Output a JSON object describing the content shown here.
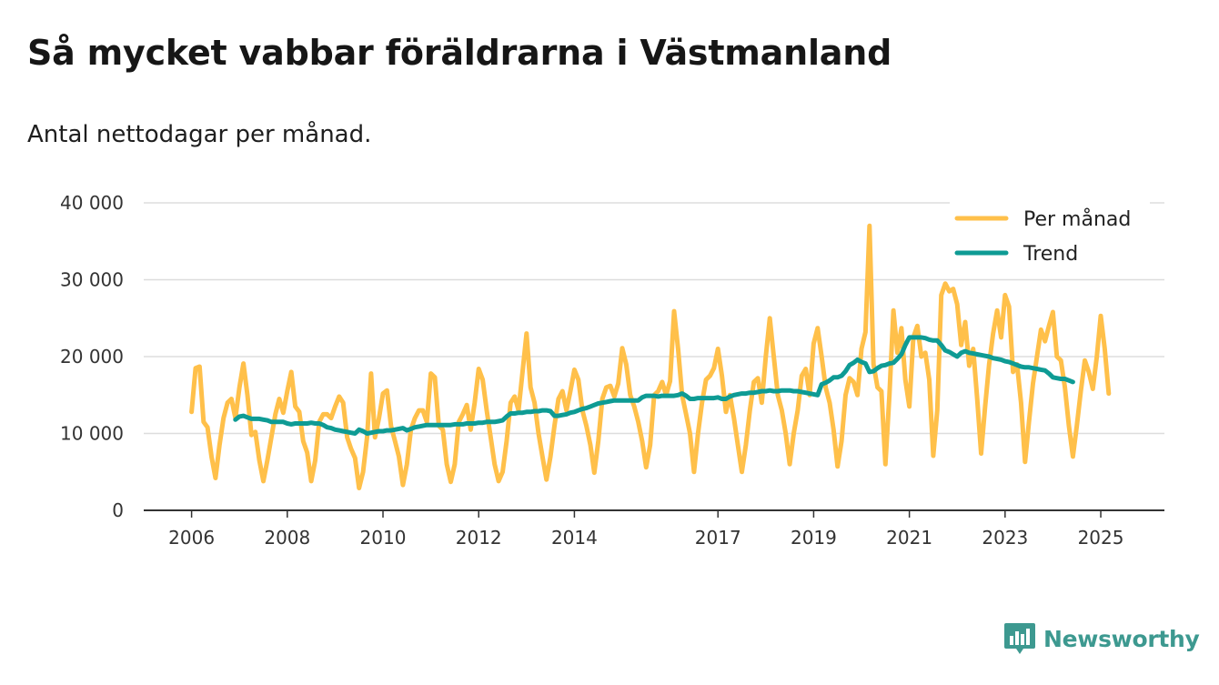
{
  "title": "Så mycket vabbar föräldrarna i Västmanland",
  "subtitle": "Antal nettodagar per månad.",
  "brand": {
    "name": "Newsworthy",
    "color": "#3d9990",
    "icon": "bar-chart-badge-icon"
  },
  "colors": {
    "per_month": "#ffc04a",
    "trend": "#0e9b94",
    "grid": "#dddddd",
    "axis": "#333333"
  },
  "chart_data": {
    "type": "line",
    "title": "Så mycket vabbar föräldrarna i Västmanland",
    "subtitle": "Antal nettodagar per månad.",
    "xlabel": "",
    "ylabel": "",
    "xlim": [
      2005.0,
      2026.33
    ],
    "ylim": [
      0,
      40000
    ],
    "yticks": [
      0,
      10000,
      20000,
      30000,
      40000
    ],
    "ytick_labels": [
      "0",
      "10 000",
      "20 000",
      "30 000",
      "40 000"
    ],
    "xticks": [
      2006,
      2008,
      2010,
      2012,
      2014,
      2017,
      2019,
      2021,
      2023,
      2025
    ],
    "xtick_labels": [
      "2006",
      "2008",
      "2010",
      "2012",
      "2014",
      "2017",
      "2019",
      "2021",
      "2023",
      "2025"
    ],
    "grid": true,
    "legend_position": "top-right",
    "series": [
      {
        "name": "Per månad",
        "start": 2006.0,
        "step": 0.08333333,
        "values": [
          12800,
          18500,
          18700,
          11500,
          10800,
          7000,
          4200,
          8500,
          12000,
          14000,
          14500,
          12000,
          16000,
          19100,
          15000,
          9800,
          10200,
          6500,
          3800,
          6500,
          9500,
          12500,
          14500,
          12700,
          15500,
          18000,
          13500,
          12800,
          9000,
          7500,
          3800,
          6500,
          11500,
          12500,
          12500,
          12000,
          13500,
          14800,
          14000,
          9500,
          8000,
          6800,
          2900,
          5000,
          9500,
          17800,
          9500,
          12000,
          15200,
          15600,
          11000,
          9000,
          7000,
          3300,
          6000,
          10500,
          12000,
          13000,
          13000,
          11500,
          17800,
          17300,
          11000,
          10500,
          6000,
          3700,
          6000,
          11500,
          12500,
          13700,
          10500,
          14000,
          18400,
          17000,
          13000,
          9500,
          6000,
          3800,
          5000,
          9000,
          14000,
          14800,
          13000,
          18000,
          23000,
          16000,
          14000,
          10000,
          7000,
          4000,
          7000,
          11000,
          14500,
          15500,
          13000,
          15500,
          18300,
          17000,
          13000,
          11000,
          8500,
          4900,
          9000,
          14500,
          16000,
          16200,
          14800,
          16500,
          21100,
          19000,
          15000,
          13500,
          11500,
          9000,
          5600,
          8500,
          15000,
          15500,
          16700,
          15000,
          16800,
          25900,
          21000,
          15000,
          12500,
          10000,
          5000,
          10000,
          14000,
          17000,
          17500,
          18500,
          21000,
          17500,
          12800,
          15000,
          12000,
          8500,
          5000,
          8500,
          13000,
          16700,
          17200,
          14000,
          20000,
          25000,
          20000,
          15000,
          13000,
          10000,
          6000,
          10000,
          13000,
          17500,
          18400,
          15000,
          21700,
          23700,
          20000,
          16000,
          14000,
          10500,
          5700,
          9000,
          15000,
          17200,
          16700,
          15000,
          21000,
          23200,
          37000,
          19000,
          16000,
          15500,
          6000,
          15000,
          26000,
          20500,
          23700,
          17000,
          13500,
          22500,
          24000,
          20000,
          20500,
          17000,
          7100,
          13000,
          28000,
          29500,
          28500,
          28800,
          26800,
          21500,
          24500,
          18800,
          21000,
          14500,
          7400,
          13500,
          19000,
          23000,
          26000,
          22500,
          28000,
          26500,
          18000,
          19000,
          14000,
          6300,
          11500,
          16500,
          20000,
          23500,
          22000,
          24000,
          25800,
          20000,
          19500,
          16000,
          11000,
          7000,
          11000,
          15500,
          19500,
          18000,
          15800,
          20000,
          25300,
          21000,
          15200
        ]
      },
      {
        "name": "Trend",
        "start": 2006.9167,
        "step": 0.08333333,
        "values": [
          11800,
          12200,
          12300,
          12100,
          11900,
          11900,
          11900,
          11800,
          11700,
          11500,
          11500,
          11500,
          11500,
          11300,
          11200,
          11300,
          11300,
          11300,
          11300,
          11400,
          11300,
          11300,
          11100,
          10800,
          10700,
          10500,
          10400,
          10300,
          10200,
          10100,
          10000,
          10500,
          10300,
          10000,
          10100,
          10200,
          10300,
          10300,
          10400,
          10400,
          10500,
          10600,
          10700,
          10400,
          10600,
          10800,
          10900,
          11000,
          11100,
          11100,
          11100,
          11100,
          11100,
          11100,
          11100,
          11200,
          11200,
          11200,
          11300,
          11300,
          11300,
          11400,
          11400,
          11500,
          11500,
          11500,
          11600,
          11700,
          12200,
          12600,
          12600,
          12700,
          12700,
          12800,
          12800,
          12900,
          12900,
          13000,
          13000,
          12900,
          12300,
          12300,
          12400,
          12500,
          12700,
          12800,
          13000,
          13200,
          13300,
          13500,
          13700,
          13900,
          14000,
          14100,
          14200,
          14300,
          14300,
          14300,
          14300,
          14300,
          14300,
          14300,
          14700,
          14900,
          14900,
          14900,
          14800,
          14900,
          14900,
          14900,
          14900,
          15000,
          15200,
          14900,
          14500,
          14500,
          14600,
          14600,
          14600,
          14600,
          14600,
          14700,
          14500,
          14500,
          14800,
          15000,
          15100,
          15200,
          15200,
          15300,
          15300,
          15400,
          15500,
          15500,
          15600,
          15500,
          15500,
          15600,
          15600,
          15600,
          15500,
          15500,
          15400,
          15300,
          15200,
          15100,
          15000,
          16400,
          16600,
          16900,
          17300,
          17300,
          17500,
          18100,
          18900,
          19200,
          19600,
          19300,
          19100,
          18000,
          18100,
          18500,
          18800,
          18900,
          19100,
          19200,
          19700,
          20300,
          21500,
          22500,
          22500,
          22500,
          22500,
          22400,
          22200,
          22100,
          22100,
          21500,
          20800,
          20600,
          20300,
          20000,
          20500,
          20700,
          20500,
          20400,
          20300,
          20200,
          20100,
          20000,
          19800,
          19700,
          19600,
          19400,
          19300,
          19100,
          18900,
          18700,
          18600,
          18600,
          18500,
          18400,
          18300,
          18200,
          17800,
          17300,
          17200,
          17100,
          17100,
          16900,
          16700
        ]
      }
    ]
  }
}
